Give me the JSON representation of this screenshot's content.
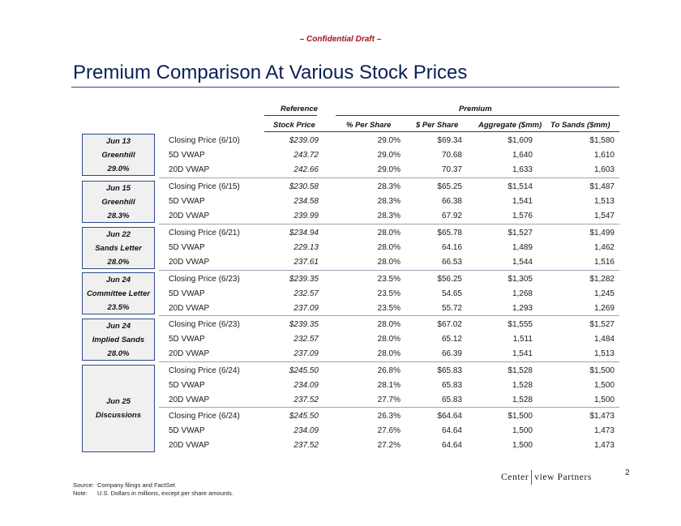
{
  "banner": "– Confidential Draft –",
  "title": "Premium Comparison At Various Stock Prices",
  "headers": {
    "reference_top": "Reference",
    "reference_bottom": "Stock Price",
    "premium": "Premium",
    "pct_per_share": "% Per Share",
    "usd_per_share": "$ Per Share",
    "aggregate": "Aggregate ($mm)",
    "to_sands": "To Sands ($mm)"
  },
  "groups": [
    {
      "lines": [
        "Jun 13",
        "Greenhill",
        "29.0%"
      ]
    },
    {
      "lines": [
        "Jun 15",
        "Greenhill",
        "28.3%"
      ]
    },
    {
      "lines": [
        "Jun 22",
        "Sands Letter",
        "28.0%"
      ]
    },
    {
      "lines": [
        "Jun 24",
        "Committee Letter",
        "23.5%"
      ]
    },
    {
      "lines": [
        "Jun 24",
        "Implied Sands",
        "28.0%"
      ]
    },
    {
      "lines": [
        "Jun 25",
        "Discussions"
      ]
    }
  ],
  "rows": [
    {
      "label": "Closing Price (6/10)",
      "ref": "$239.09",
      "pct": "29.0%",
      "usd": "$69.34",
      "agg": "$1,609",
      "sands": "$1,580"
    },
    {
      "label": "5D VWAP",
      "ref": "243.72",
      "pct": "29.0%",
      "usd": "70.68",
      "agg": "1,640",
      "sands": "1,610"
    },
    {
      "label": "20D VWAP",
      "ref": "242.66",
      "pct": "29.0%",
      "usd": "70.37",
      "agg": "1,633",
      "sands": "1,603"
    },
    {
      "label": "Closing Price (6/15)",
      "ref": "$230.58",
      "pct": "28.3%",
      "usd": "$65.25",
      "agg": "$1,514",
      "sands": "$1,487"
    },
    {
      "label": "5D VWAP",
      "ref": "234.58",
      "pct": "28.3%",
      "usd": "66.38",
      "agg": "1,541",
      "sands": "1,513"
    },
    {
      "label": "20D VWAP",
      "ref": "239.99",
      "pct": "28.3%",
      "usd": "67.92",
      "agg": "1,576",
      "sands": "1,547"
    },
    {
      "label": "Closing Price (6/21)",
      "ref": "$234.94",
      "pct": "28.0%",
      "usd": "$65.78",
      "agg": "$1,527",
      "sands": "$1,499"
    },
    {
      "label": "5D VWAP",
      "ref": "229.13",
      "pct": "28.0%",
      "usd": "64.16",
      "agg": "1,489",
      "sands": "1,462"
    },
    {
      "label": "20D VWAP",
      "ref": "237.61",
      "pct": "28.0%",
      "usd": "66.53",
      "agg": "1,544",
      "sands": "1,516"
    },
    {
      "label": "Closing Price (6/23)",
      "ref": "$239.35",
      "pct": "23.5%",
      "usd": "$56.25",
      "agg": "$1,305",
      "sands": "$1,282"
    },
    {
      "label": "5D VWAP",
      "ref": "232.57",
      "pct": "23.5%",
      "usd": "54.65",
      "agg": "1,268",
      "sands": "1,245"
    },
    {
      "label": "20D VWAP",
      "ref": "237.09",
      "pct": "23.5%",
      "usd": "55.72",
      "agg": "1,293",
      "sands": "1,269"
    },
    {
      "label": "Closing Price (6/23)",
      "ref": "$239.35",
      "pct": "28.0%",
      "usd": "$67.02",
      "agg": "$1,555",
      "sands": "$1,527"
    },
    {
      "label": "5D VWAP",
      "ref": "232.57",
      "pct": "28.0%",
      "usd": "65.12",
      "agg": "1,511",
      "sands": "1,484"
    },
    {
      "label": "20D VWAP",
      "ref": "237.09",
      "pct": "28.0%",
      "usd": "66.39",
      "agg": "1,541",
      "sands": "1,513"
    },
    {
      "label": "Closing Price (6/24)",
      "ref": "$245.50",
      "pct": "26.8%",
      "usd": "$65.83",
      "agg": "$1,528",
      "sands": "$1,500"
    },
    {
      "label": "5D VWAP",
      "ref": "234.09",
      "pct": "28.1%",
      "usd": "65.83",
      "agg": "1,528",
      "sands": "1,500"
    },
    {
      "label": "20D VWAP",
      "ref": "237.52",
      "pct": "27.7%",
      "usd": "65.83",
      "agg": "1,528",
      "sands": "1,500"
    },
    {
      "label": "Closing Price (6/24)",
      "ref": "$245.50",
      "pct": "26.3%",
      "usd": "$64.64",
      "agg": "$1,500",
      "sands": "$1,473"
    },
    {
      "label": "5D VWAP",
      "ref": "234.09",
      "pct": "27.6%",
      "usd": "64.64",
      "agg": "1,500",
      "sands": "1,473"
    },
    {
      "label": "20D VWAP",
      "ref": "237.52",
      "pct": "27.2%",
      "usd": "64.64",
      "agg": "1,500",
      "sands": "1,473"
    }
  ],
  "footnotes": {
    "source_key": "Source:",
    "source_text": "Company filings and FactSet.",
    "note_key": "Note:",
    "note_text": "U.S. Dollars in millions, except per share amounts."
  },
  "logo": {
    "left": "Center",
    "right": "view Partners"
  },
  "page_number": "2"
}
